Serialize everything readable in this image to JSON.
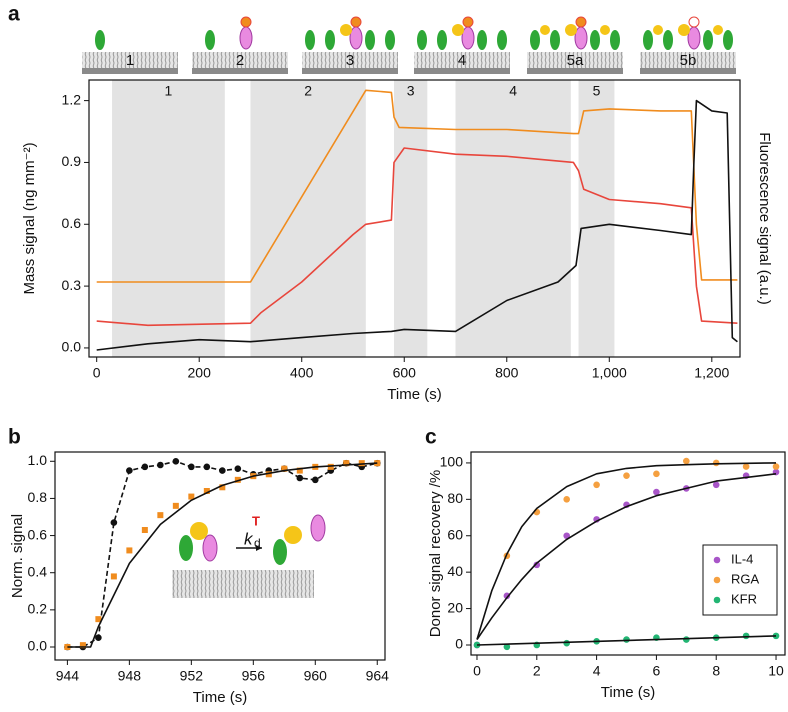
{
  "chart_data": [
    {
      "type": "line",
      "panel_label": "a",
      "xlabel": "Time (s)",
      "ylabel": "Mass signal (ng mm⁻²)",
      "y2label": "Fluorescence signal (a.u.)",
      "xlim": [
        -15,
        1255
      ],
      "ylim": [
        -0.044,
        1.3
      ],
      "xticks": [
        0,
        200,
        400,
        600,
        800,
        {
          "value": 1000,
          "label": "1,000"
        },
        {
          "value": 1200,
          "label": "1,200"
        }
      ],
      "yticks": [
        {
          "value": 0,
          "label": "0.0"
        },
        0.3,
        0.6,
        0.9,
        1.2
      ],
      "step_labels": [
        "1",
        "2",
        "3",
        "4",
        "5a",
        "5b"
      ],
      "regions": [
        {
          "label": "1",
          "start": 30,
          "end": 250
        },
        {
          "label": "2",
          "start": 300,
          "end": 525
        },
        {
          "label": "3",
          "start": 580,
          "end": 645
        },
        {
          "label": "4",
          "start": 700,
          "end": 925
        },
        {
          "label": "5",
          "start": 940,
          "end": 1010
        }
      ],
      "series": [
        {
          "color": "#f08c1e",
          "line": true,
          "x": [
            0,
            300,
            525,
            575,
            580,
            590,
            700,
            800,
            930,
            940,
            950,
            1000,
            1100,
            1160,
            1170,
            1180,
            1250
          ],
          "values": [
            0.32,
            0.32,
            1.25,
            1.24,
            1.12,
            1.07,
            1.06,
            1.06,
            1.04,
            1.04,
            1.15,
            1.16,
            1.15,
            1.15,
            0.6,
            0.33,
            0.33
          ]
        },
        {
          "color": "#e8463c",
          "line": true,
          "x": [
            0,
            100,
            300,
            320,
            400,
            500,
            525,
            575,
            580,
            600,
            700,
            800,
            930,
            940,
            950,
            1000,
            1100,
            1160,
            1170,
            1180,
            1250
          ],
          "values": [
            0.13,
            0.11,
            0.12,
            0.17,
            0.32,
            0.55,
            0.6,
            0.62,
            0.9,
            0.97,
            0.94,
            0.93,
            0.9,
            0.86,
            0.77,
            0.72,
            0.7,
            0.68,
            0.3,
            0.13,
            0.12
          ]
        },
        {
          "color": "#111111",
          "line": true,
          "x": [
            0,
            100,
            200,
            300,
            400,
            500,
            575,
            600,
            700,
            800,
            900,
            935,
            945,
            1000,
            1100,
            1160,
            1165,
            1170,
            1200,
            1230,
            1240,
            1250
          ],
          "values": [
            -0.01,
            0.02,
            0.04,
            0.03,
            0.05,
            0.07,
            0.08,
            0.09,
            0.08,
            0.23,
            0.32,
            0.4,
            0.58,
            0.6,
            0.57,
            0.55,
            0.9,
            1.2,
            1.15,
            1.14,
            0.05,
            0.03
          ]
        }
      ]
    },
    {
      "type": "line",
      "panel_label": "b",
      "xlabel": "Time (s)",
      "ylabel": "Norm. signal",
      "xlim": [
        943.2,
        964.5
      ],
      "ylim": [
        -0.07,
        1.05
      ],
      "xticks": [
        944,
        948,
        952,
        956,
        960,
        964
      ],
      "yticks": [
        {
          "value": 0,
          "label": "0.0"
        },
        0.2,
        0.4,
        0.6,
        0.8,
        {
          "value": 1,
          "label": "1.0"
        }
      ],
      "inset_text": {
        "k": "k",
        "sub": "d",
        "sup": "T"
      },
      "series": [
        {
          "color": "#111111",
          "line": true,
          "dash": true,
          "marker": "circle",
          "x": [
            944,
            945,
            946,
            947,
            948,
            949,
            950,
            951,
            952,
            953,
            954,
            955,
            956,
            957,
            958,
            959,
            960,
            961,
            962,
            963,
            964
          ],
          "values": [
            0,
            0,
            0.05,
            0.67,
            0.95,
            0.97,
            0.98,
            1.0,
            0.97,
            0.97,
            0.95,
            0.96,
            0.93,
            0.95,
            0.96,
            0.91,
            0.9,
            0.95,
            0.99,
            0.97,
            0.99
          ]
        },
        {
          "color": "#f08c1e",
          "marker": "square",
          "x": [
            944,
            945,
            946,
            947,
            948,
            949,
            950,
            951,
            952,
            953,
            954,
            955,
            956,
            957,
            958,
            959,
            960,
            961,
            962,
            963,
            964
          ],
          "values": [
            0,
            0.01,
            0.15,
            0.38,
            0.52,
            0.63,
            0.71,
            0.76,
            0.81,
            0.84,
            0.86,
            0.9,
            0.92,
            0.93,
            0.96,
            0.95,
            0.97,
            0.97,
            0.99,
            0.99,
            0.99
          ]
        },
        {
          "color": "#111111",
          "line": true,
          "x": [
            944,
            945.5,
            946,
            948,
            950,
            952,
            954,
            956,
            958,
            960,
            962,
            964
          ],
          "values": [
            0,
            0,
            0.11,
            0.45,
            0.66,
            0.79,
            0.87,
            0.92,
            0.95,
            0.97,
            0.98,
            0.99
          ]
        }
      ]
    },
    {
      "type": "line",
      "panel_label": "c",
      "xlabel": "Time (s)",
      "ylabel": "Donor signal recovery /%",
      "xlim": [
        -0.2,
        10.3
      ],
      "ylim": [
        -5.5,
        106
      ],
      "xticks": [
        0,
        2,
        4,
        6,
        8,
        10
      ],
      "yticks": [
        0,
        20,
        40,
        60,
        80,
        100
      ],
      "legend": "lower right",
      "series": [
        {
          "name": "IL-4",
          "color": "#a855c8",
          "marker": "circle",
          "x": [
            0,
            1,
            2,
            3,
            4,
            5,
            6,
            7,
            8,
            9,
            10
          ],
          "values": [
            0,
            27,
            44,
            60,
            69,
            77,
            84,
            86,
            88,
            93,
            95
          ]
        },
        {
          "name": "RGA",
          "color": "#f5a040",
          "marker": "circle",
          "x": [
            1,
            2,
            3,
            4,
            5,
            6,
            7,
            8,
            9,
            10
          ],
          "values": [
            49,
            73,
            80,
            88,
            93,
            94,
            101,
            100,
            98,
            98
          ]
        },
        {
          "name": "KFR",
          "color": "#22b573",
          "marker": "circle",
          "x": [
            0,
            1,
            2,
            3,
            4,
            5,
            6,
            7,
            8,
            9,
            10
          ],
          "values": [
            0,
            -1,
            0,
            1,
            2,
            3,
            4,
            3,
            4,
            5,
            5
          ]
        },
        {
          "color": "#111111",
          "line": true,
          "x": [
            0,
            0.5,
            1,
            1.5,
            2,
            3,
            4,
            5,
            6,
            7,
            8,
            10
          ],
          "values": [
            3,
            30,
            50,
            65,
            75,
            87,
            94,
            97,
            98.5,
            99,
            99.5,
            100
          ]
        },
        {
          "color": "#111111",
          "line": true,
          "x": [
            0,
            0.5,
            1,
            1.5,
            2,
            3,
            4,
            5,
            6,
            7,
            8,
            10
          ],
          "values": [
            3,
            15,
            26,
            36,
            45,
            58,
            68,
            76,
            82,
            86,
            90,
            94
          ]
        },
        {
          "color": "#111111",
          "line": true,
          "x": [
            0,
            10
          ],
          "values": [
            0,
            5
          ]
        }
      ]
    }
  ]
}
